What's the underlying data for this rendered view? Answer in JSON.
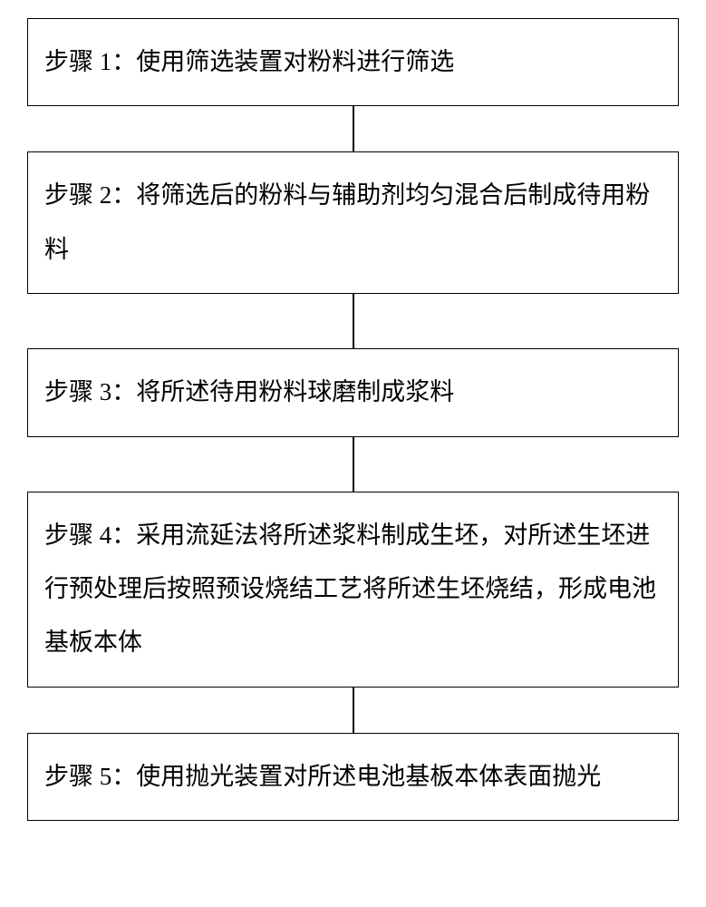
{
  "flowchart": {
    "type": "flowchart",
    "direction": "vertical",
    "background_color": "#ffffff",
    "border_color": "#000000",
    "border_width": 1.5,
    "connector_color": "#000000",
    "connector_width": 2,
    "font_family": "SimSun",
    "font_size": 27,
    "text_color": "#000000",
    "line_height": 2.2,
    "box_padding": 18,
    "steps": [
      {
        "id": 1,
        "text": "步骤 1：使用筛选装置对粉料进行筛选",
        "connector_height": 50
      },
      {
        "id": 2,
        "text": "步骤 2：将筛选后的粉料与辅助剂均匀混合后制成待用粉料",
        "connector_height": 60
      },
      {
        "id": 3,
        "text": "步骤 3：将所述待用粉料球磨制成浆料",
        "connector_height": 60
      },
      {
        "id": 4,
        "text": "步骤 4：采用流延法将所述浆料制成生坯，对所述生坯进行预处理后按照预设烧结工艺将所述生坯烧结，形成电池基板本体",
        "connector_height": 50
      },
      {
        "id": 5,
        "text": "步骤 5：使用抛光装置对所述电池基板本体表面抛光",
        "connector_height": 0
      }
    ]
  }
}
